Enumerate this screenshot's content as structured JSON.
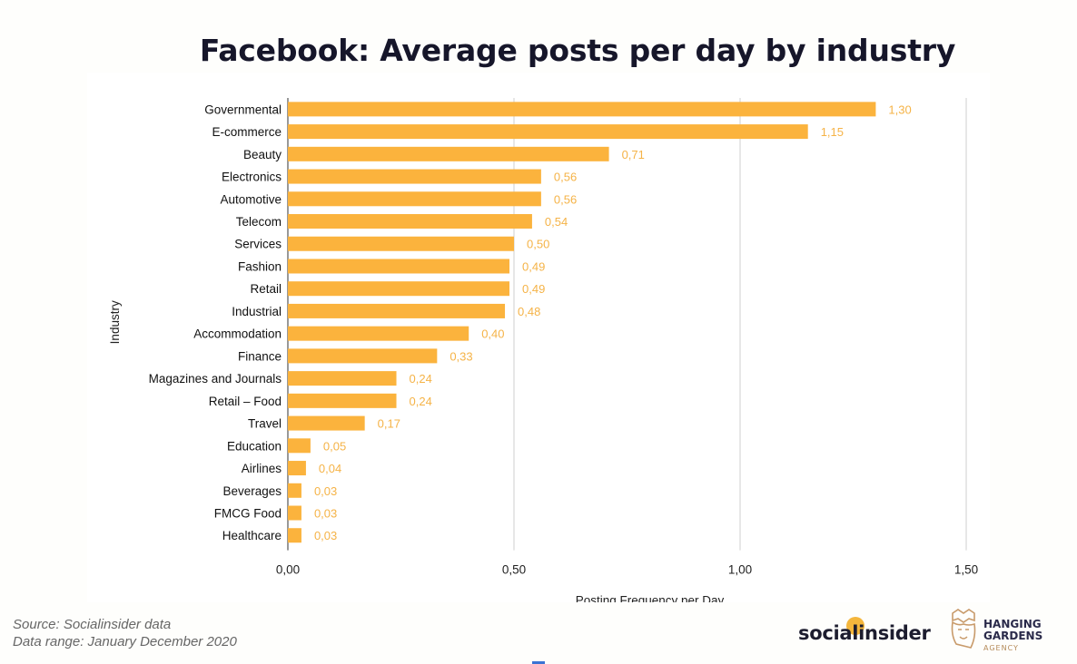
{
  "title": "Facebook: Average posts per day by industry",
  "chart_data": {
    "type": "bar",
    "orientation": "horizontal",
    "title": "Facebook: Average posts per day by industry",
    "xlabel": "Posting Frequency per Day",
    "ylabel": "Industry",
    "xlim": [
      0,
      1.5
    ],
    "xticks": [
      0,
      0.5,
      1.0,
      1.5
    ],
    "xtick_labels": [
      "0,00",
      "0,50",
      "1,00",
      "1,50"
    ],
    "grid": true,
    "bar_color": "#fbb33d",
    "label_color": "#f5b347",
    "categories": [
      "Governmental",
      "E-commerce",
      "Beauty",
      "Electronics",
      "Automotive",
      "Telecom",
      "Services",
      "Fashion",
      "Retail",
      "Industrial",
      "Accommodation",
      "Finance",
      "Magazines and Journals",
      "Retail – Food",
      "Travel",
      "Education",
      "Airlines",
      "Beverages",
      "FMCG Food",
      "Healthcare"
    ],
    "values": [
      1.3,
      1.15,
      0.71,
      0.56,
      0.56,
      0.54,
      0.5,
      0.49,
      0.49,
      0.48,
      0.4,
      0.33,
      0.24,
      0.24,
      0.17,
      0.05,
      0.04,
      0.03,
      0.03,
      0.03
    ],
    "value_labels": [
      "1,30",
      "1,15",
      "0,71",
      "0,56",
      "0,56",
      "0,54",
      "0,50",
      "0,49",
      "0,49",
      "0,48",
      "0,40",
      "0,33",
      "0,24",
      "0,24",
      "0,17",
      "0,05",
      "0,04",
      "0,03",
      "0,03",
      "0,03"
    ]
  },
  "footer": {
    "source": "Source: Socialinsider data",
    "range": "Data range: January  December 2020"
  },
  "brands": {
    "socialinsider": "socialinsider",
    "hg_line1": "HANGING",
    "hg_line2": "GARDENS",
    "hg_line3": "AGENCY"
  }
}
